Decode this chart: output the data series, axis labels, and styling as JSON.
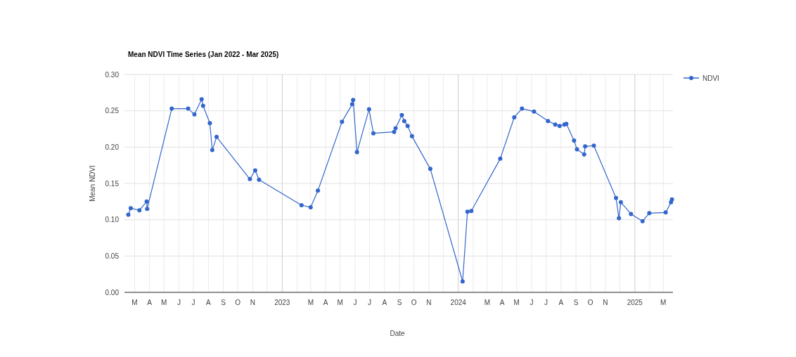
{
  "chart_data": {
    "type": "line",
    "title": "Mean NDVI Time Series (Jan 2022 - Mar 2025)",
    "xlabel": "Date",
    "ylabel": "Mean NDVI",
    "x": [
      "2022-02-16",
      "2022-02-21",
      "2022-03-11",
      "2022-03-26",
      "2022-03-27",
      "2022-05-17",
      "2022-06-20",
      "2022-07-03",
      "2022-07-18",
      "2022-07-21",
      "2022-08-04",
      "2022-08-09",
      "2022-08-18",
      "2022-10-26",
      "2022-11-06",
      "2022-11-14",
      "2023-02-10",
      "2023-03-01",
      "2023-03-16",
      "2023-05-05",
      "2023-05-26",
      "2023-05-28",
      "2023-06-05",
      "2023-06-30",
      "2023-07-09",
      "2023-08-21",
      "2023-08-24",
      "2023-09-06",
      "2023-09-11",
      "2023-09-18",
      "2023-09-27",
      "2023-11-04",
      "2024-01-10",
      "2024-01-20",
      "2024-01-28",
      "2024-03-28",
      "2024-04-26",
      "2024-05-12",
      "2024-06-06",
      "2024-07-05",
      "2024-07-20",
      "2024-07-29",
      "2024-08-08",
      "2024-08-12",
      "2024-08-28",
      "2024-09-03",
      "2024-09-18",
      "2024-09-20",
      "2024-10-08",
      "2024-11-23",
      "2024-11-29",
      "2024-12-03",
      "2024-12-24",
      "2025-01-17",
      "2025-01-31",
      "2025-03-06",
      "2025-03-17",
      "2025-03-19"
    ],
    "series": [
      {
        "name": "NDVI",
        "color": "#3366cc",
        "values": [
          0.107,
          0.116,
          0.113,
          0.125,
          0.115,
          0.253,
          0.253,
          0.245,
          0.266,
          0.257,
          0.233,
          0.196,
          0.214,
          0.156,
          0.168,
          0.155,
          0.12,
          0.117,
          0.14,
          0.235,
          0.259,
          0.265,
          0.193,
          0.252,
          0.219,
          0.221,
          0.226,
          0.244,
          0.236,
          0.229,
          0.215,
          0.17,
          0.015,
          0.111,
          0.112,
          0.184,
          0.241,
          0.253,
          0.249,
          0.236,
          0.231,
          0.229,
          0.231,
          0.232,
          0.209,
          0.197,
          0.19,
          0.201,
          0.202,
          0.13,
          0.102,
          0.124,
          0.108,
          0.098,
          0.109,
          0.11,
          0.124,
          0.128
        ]
      }
    ],
    "xlim": [
      "2022-02-08",
      "2025-03-21"
    ],
    "xticks": [
      {
        "value": "2022-03",
        "label": "M"
      },
      {
        "value": "2022-04",
        "label": "A"
      },
      {
        "value": "2022-05",
        "label": "M"
      },
      {
        "value": "2022-06",
        "label": "J"
      },
      {
        "value": "2022-07",
        "label": "J"
      },
      {
        "value": "2022-08",
        "label": "A"
      },
      {
        "value": "2022-09",
        "label": "S"
      },
      {
        "value": "2022-10",
        "label": "O"
      },
      {
        "value": "2022-11",
        "label": "N"
      },
      {
        "value": "2022-12",
        "label": null
      },
      {
        "value": "2023-01",
        "label": "2023"
      },
      {
        "value": "2023-02",
        "label": null
      },
      {
        "value": "2023-03",
        "label": "M"
      },
      {
        "value": "2023-04",
        "label": "A"
      },
      {
        "value": "2023-05",
        "label": "M"
      },
      {
        "value": "2023-06",
        "label": "J"
      },
      {
        "value": "2023-07",
        "label": "J"
      },
      {
        "value": "2023-08",
        "label": "A"
      },
      {
        "value": "2023-09",
        "label": "S"
      },
      {
        "value": "2023-10",
        "label": "O"
      },
      {
        "value": "2023-11",
        "label": "N"
      },
      {
        "value": "2023-12",
        "label": null
      },
      {
        "value": "2024-01",
        "label": "2024"
      },
      {
        "value": "2024-02",
        "label": null
      },
      {
        "value": "2024-03",
        "label": "M"
      },
      {
        "value": "2024-04",
        "label": "A"
      },
      {
        "value": "2024-05",
        "label": "M"
      },
      {
        "value": "2024-06",
        "label": "J"
      },
      {
        "value": "2024-07",
        "label": "J"
      },
      {
        "value": "2024-08",
        "label": "A"
      },
      {
        "value": "2024-09",
        "label": "S"
      },
      {
        "value": "2024-10",
        "label": "O"
      },
      {
        "value": "2024-11",
        "label": "N"
      },
      {
        "value": "2024-12",
        "label": null
      },
      {
        "value": "2025-01",
        "label": "2025"
      },
      {
        "value": "2025-02",
        "label": null
      },
      {
        "value": "2025-03",
        "label": "M"
      }
    ],
    "ylim": [
      0,
      0.3
    ],
    "yticks": [
      {
        "value": 0,
        "label": "0.00"
      },
      {
        "value": 0.05,
        "label": "0.05"
      },
      {
        "value": 0.1,
        "label": "0.10"
      },
      {
        "value": 0.15,
        "label": "0.15"
      },
      {
        "value": 0.2,
        "label": "0.20"
      },
      {
        "value": 0.25,
        "label": "0.25"
      },
      {
        "value": 0.3,
        "label": "0.30"
      }
    ],
    "grid": true,
    "legend": "top right",
    "marker": "circle",
    "line_style": "solid"
  }
}
